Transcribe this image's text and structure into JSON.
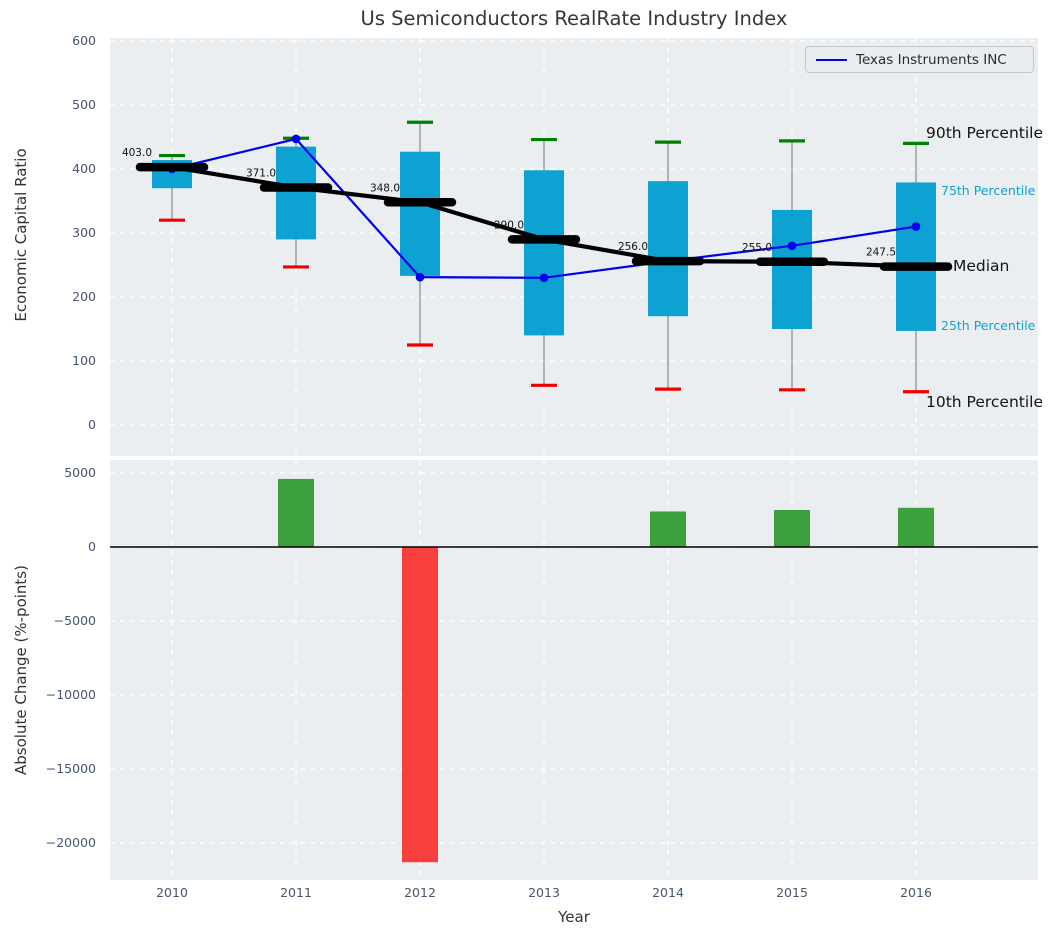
{
  "figure": {
    "title": "Us Semiconductors RealRate Industry Index",
    "background": "#ffffff",
    "plot_background": "#eaeef0",
    "grid_color": "#ffffff",
    "tick_color": "#46566c"
  },
  "chart_data": [
    {
      "type": "boxplot",
      "title": "Us Semiconductors RealRate Industry Index",
      "ylabel": "Economic Capital Ratio",
      "categories": [
        "2010",
        "2011",
        "2012",
        "2013",
        "2014",
        "2015",
        "2016"
      ],
      "yticks": [
        0,
        100,
        200,
        300,
        400,
        500,
        600
      ],
      "ylim": [
        -50,
        605
      ],
      "grid": true,
      "legend_position": "upper right",
      "percentiles": {
        "p90": [
          421,
          448,
          473,
          446,
          442,
          444,
          440
        ],
        "p75": [
          414,
          435,
          427,
          398,
          381,
          336,
          379
        ],
        "median": [
          403,
          371,
          348,
          290,
          256,
          255,
          247.5
        ],
        "p25": [
          370,
          290,
          233,
          140,
          170,
          150,
          147
        ],
        "p10": [
          320,
          247,
          125,
          62,
          56,
          55,
          52
        ]
      },
      "median_labels": [
        "403.0",
        "371.0",
        "348.0",
        "290.0",
        "256.0",
        "255.0",
        "247.5"
      ],
      "series": [
        {
          "name": "Texas Instruments INC",
          "color": "#0000ee",
          "values": [
            400,
            447,
            231,
            230,
            256,
            280,
            310
          ]
        }
      ],
      "side_labels": {
        "p90": "90th Percentile",
        "p75": "75th Percentile",
        "median": "Median",
        "p25": "25th Percentile",
        "p10": "10th Percentile"
      },
      "colors": {
        "box": "#0da2d2",
        "median_line": "#000000",
        "p90_cap": "#008000",
        "p10_cap": "#f20000",
        "whisker": "#8a8a8a"
      }
    },
    {
      "type": "bar",
      "ylabel": "Absolute Change (%-points)",
      "xlabel": "Year",
      "categories": [
        "2010",
        "2011",
        "2012",
        "2013",
        "2014",
        "2015",
        "2016"
      ],
      "values": [
        0,
        4600,
        -21300,
        0,
        2400,
        2500,
        2650
      ],
      "yticks": [
        5000,
        0,
        -5000,
        -10000,
        -15000,
        -20000
      ],
      "ylim": [
        -22500,
        5900
      ],
      "grid": true,
      "colors": {
        "positive": "#3ca03f",
        "negative": "#f93e3e",
        "zero_line": "#000000"
      }
    }
  ]
}
